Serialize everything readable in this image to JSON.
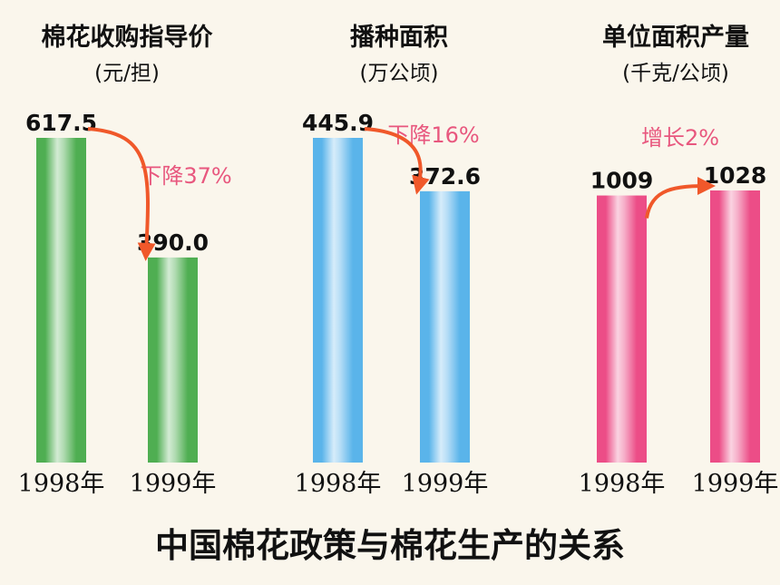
{
  "figure_caption": "中国棉花政策与棉花生产的关系",
  "colors": {
    "green": "#4fae52",
    "blue": "#5ab4ea",
    "pink": "#ec4d87",
    "arrow": "#f0582a",
    "change_text": "#e8577e"
  },
  "chart_data": [
    {
      "type": "bar",
      "title": "棉花收购指导价",
      "unit": "(元/担)",
      "categories": [
        "1998年",
        "1999年"
      ],
      "values": [
        617.5,
        390.0
      ],
      "value_labels": [
        "617.5",
        "390.0"
      ],
      "change": "下降37%",
      "color": "#4fae52"
    },
    {
      "type": "bar",
      "title": "播种面积",
      "unit": "(万公顷)",
      "categories": [
        "1998年",
        "1999年"
      ],
      "values": [
        445.9,
        372.6
      ],
      "value_labels": [
        "445.9",
        "372.6"
      ],
      "change": "下降16%",
      "color": "#5ab4ea"
    },
    {
      "type": "bar",
      "title": "单位面积产量",
      "unit": "(千克/公顷)",
      "categories": [
        "1998年",
        "1999年"
      ],
      "values": [
        1009,
        1028
      ],
      "value_labels": [
        "1009",
        "1028"
      ],
      "change": "增长2%",
      "color": "#ec4d87"
    }
  ]
}
